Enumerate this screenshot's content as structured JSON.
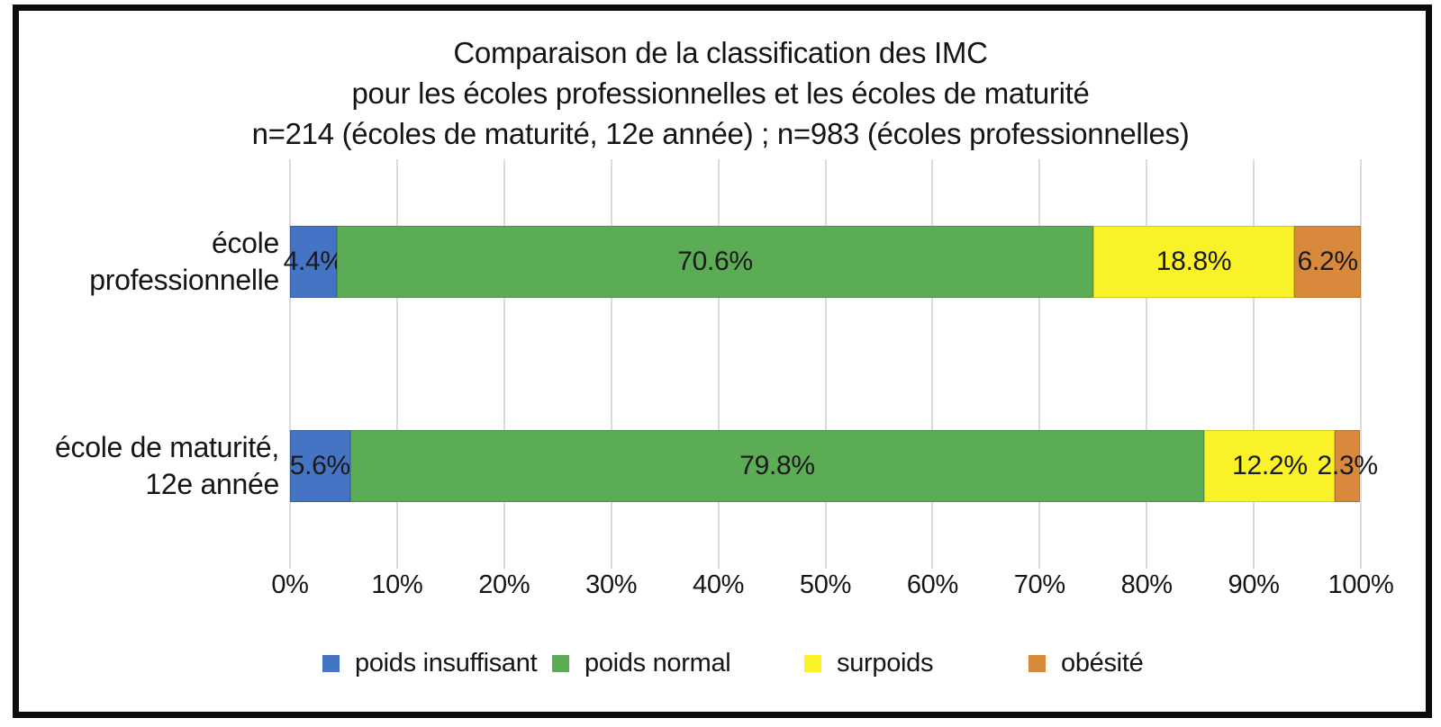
{
  "chart_data": {
    "type": "bar",
    "orientation": "horizontal",
    "stacked": true,
    "title": "Comparaison de la classification des IMC pour les écoles professionnelles et les écoles de maturité n=214 (écoles de maturité, 12e année) ; n=983 (écoles professionnelles)",
    "title_lines": [
      "Comparaison de la classification des IMC",
      "pour les écoles professionnelles et les écoles de maturité",
      "n=214 (écoles de maturité, 12e année) ; n=983 (écoles professionnelles)"
    ],
    "categories": [
      "école\nprofessionnelle",
      "école de maturité,\n12e année"
    ],
    "series": [
      {
        "name": "poids insuffisant",
        "color": "#4574C4",
        "values": [
          4.4,
          5.6
        ]
      },
      {
        "name": "poids normal",
        "color": "#5BAC55",
        "values": [
          70.6,
          79.8
        ]
      },
      {
        "name": "surpoids",
        "color": "#F9F228",
        "values": [
          18.8,
          12.2
        ]
      },
      {
        "name": "obésité",
        "color": "#D8893C",
        "values": [
          6.2,
          2.3
        ]
      }
    ],
    "value_labels": [
      [
        "4.4%",
        "70.6%",
        "18.8%",
        "6.2%"
      ],
      [
        "5.6%",
        "79.8%",
        "12.2%",
        "2.3%"
      ]
    ],
    "x_ticks": [
      "0%",
      "10%",
      "20%",
      "30%",
      "40%",
      "50%",
      "60%",
      "70%",
      "80%",
      "90%",
      "100%"
    ],
    "xlim": [
      0,
      100
    ],
    "grid": "vertical",
    "gridline_color": "#dbdbdb",
    "legend_position": "bottom"
  }
}
